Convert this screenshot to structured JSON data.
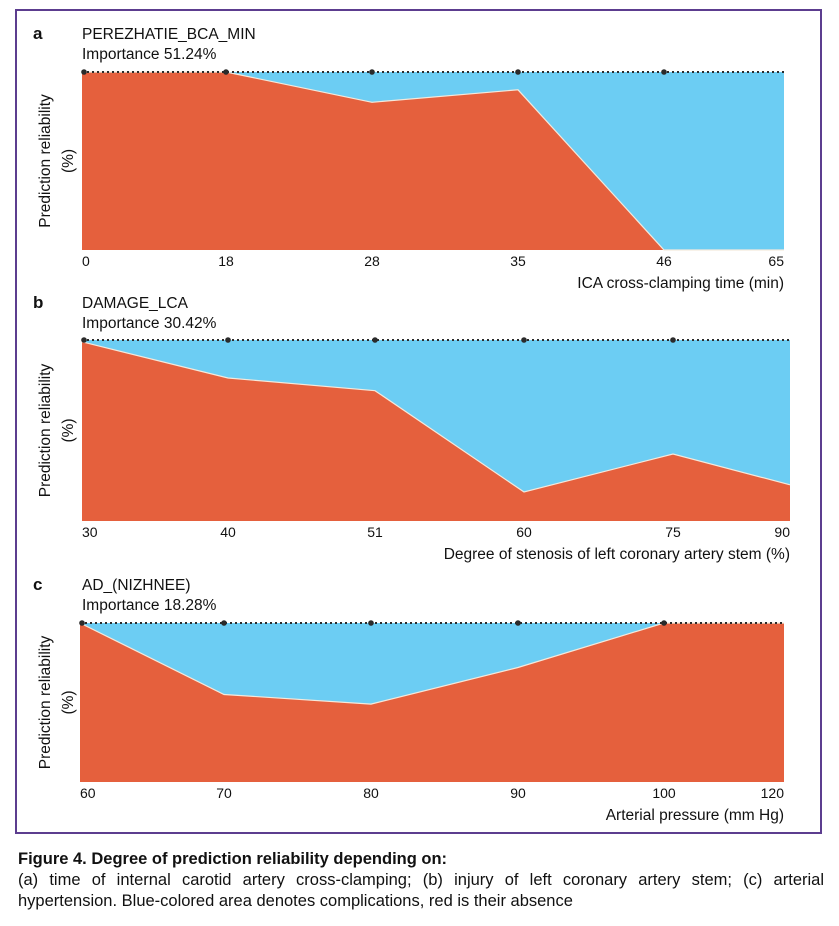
{
  "chart_data": [
    {
      "type": "area",
      "panel_letter": "a",
      "title": "PEREZHATIE_BCA_MIN",
      "subtitle": "Importance 51.24%",
      "ylabel": [
        "Prediction reliability",
        "(%)"
      ],
      "xlabel": "ICA cross-clamping time (min)",
      "x_ticks": [
        "0",
        "18",
        "28",
        "35",
        "46",
        "65"
      ],
      "series": [
        {
          "values": [
            100,
            100,
            83,
            90,
            0,
            0
          ],
          "color": "#e5603d"
        }
      ],
      "upper_band_color": "#6ccdf3",
      "ylim": [
        0,
        100
      ]
    },
    {
      "type": "area",
      "panel_letter": "b",
      "title": "DAMAGE_LCA",
      "subtitle": "Importance 30.42%",
      "ylabel": [
        "Prediction reliability",
        "(%)"
      ],
      "xlabel": "Degree of stenosis of left coronary artery stem (%)",
      "x_ticks": [
        "30",
        "40",
        "51",
        "60",
        "75",
        "90"
      ],
      "series": [
        {
          "values": [
            99,
            79,
            72,
            16,
            37,
            20
          ],
          "color": "#e5603d"
        }
      ],
      "upper_band_color": "#6ccdf3",
      "ylim": [
        0,
        100
      ]
    },
    {
      "type": "area",
      "panel_letter": "c",
      "title": "AD_(NIZHNEE)",
      "subtitle": "Importance 18.28%",
      "ylabel": [
        "Prediction reliability",
        "(%)"
      ],
      "xlabel": "Arterial pressure (mm Hg)",
      "x_ticks": [
        "60",
        "70",
        "80",
        "90",
        "100",
        "120"
      ],
      "series": [
        {
          "values": [
            100,
            55,
            49,
            72,
            100,
            100
          ],
          "color": "#e5603d"
        }
      ],
      "upper_band_color": "#6ccdf3",
      "ylim": [
        0,
        100
      ]
    }
  ],
  "caption": {
    "title": "Figure 4. Degree of prediction reliability depending on:",
    "text": "(a) time of internal carotid artery cross-clamping; (b) injury of left coronary artery stem; (c) arterial hypertension. Blue-colored area denotes complications, red is their absence"
  }
}
